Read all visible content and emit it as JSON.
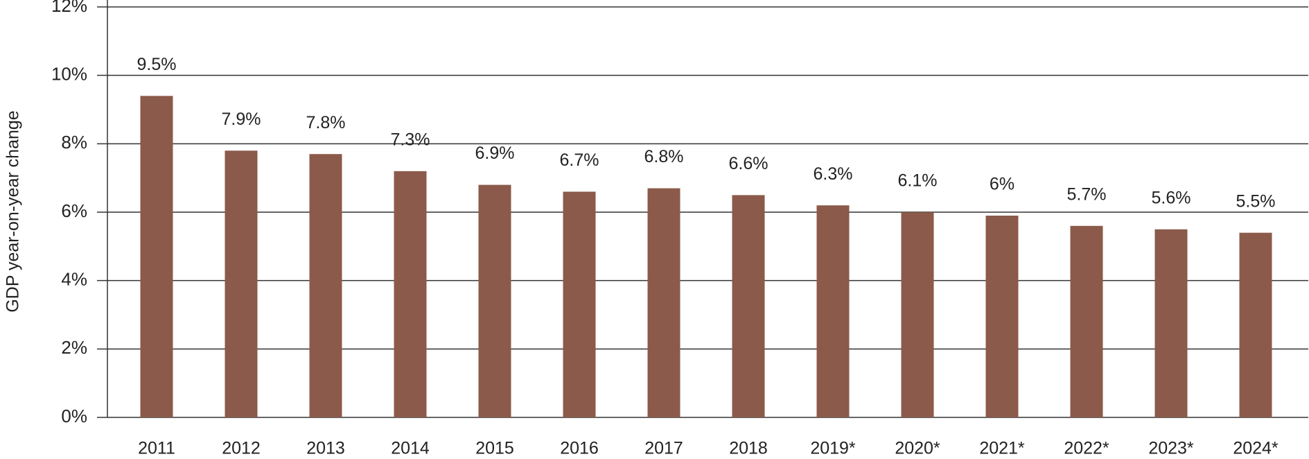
{
  "chart_data": {
    "type": "bar",
    "title": "",
    "xlabel": "",
    "ylabel": "GDP year-on-year change",
    "ylim": [
      0,
      12
    ],
    "yticks": [
      "0%",
      "2%",
      "4%",
      "6%",
      "8%",
      "10%",
      "12%"
    ],
    "categories": [
      "2011",
      "2012",
      "2013",
      "2014",
      "2015",
      "2016",
      "2017",
      "2018",
      "2019*",
      "2020*",
      "2021*",
      "2022*",
      "2023*",
      "2024*"
    ],
    "values": [
      9.5,
      7.9,
      7.8,
      7.3,
      6.9,
      6.7,
      6.8,
      6.6,
      6.3,
      6.1,
      6.0,
      5.7,
      5.6,
      5.5
    ],
    "data_labels": [
      "9.5%",
      "7.9%",
      "7.8%",
      "7.3%",
      "6.9%",
      "6.7%",
      "6.8%",
      "6.6%",
      "6.3%",
      "6.1%",
      "6%",
      "5.7%",
      "5.6%",
      "5.5%"
    ],
    "grid": true,
    "bar_color": "#8B5A4A",
    "grid_color": "#333333"
  }
}
